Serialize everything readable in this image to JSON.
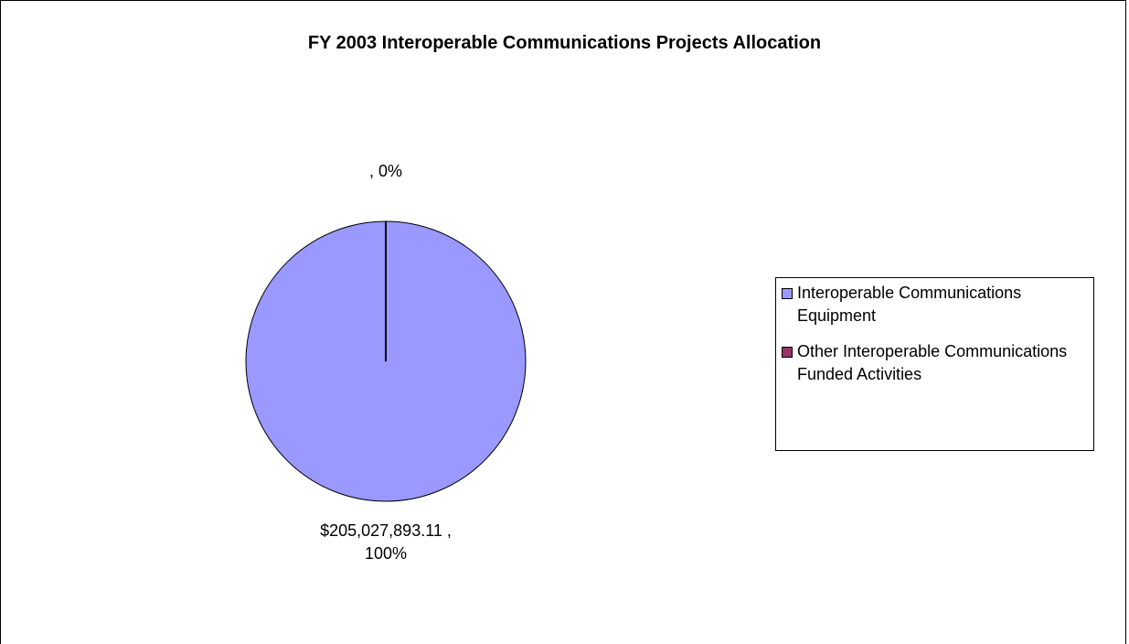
{
  "chart_data": {
    "type": "pie",
    "title": "FY 2003 Interoperable Communications Projects Allocation",
    "categories": [
      "Interoperable Communications Equipment",
      "Other Interoperable Communications Funded Activities"
    ],
    "values": [
      205027893.11,
      0
    ],
    "value_labels": [
      "$205,027,893.11 , 100%",
      ", 0%"
    ],
    "colors": [
      "#9999ff",
      "#993366"
    ],
    "legend": "right"
  }
}
